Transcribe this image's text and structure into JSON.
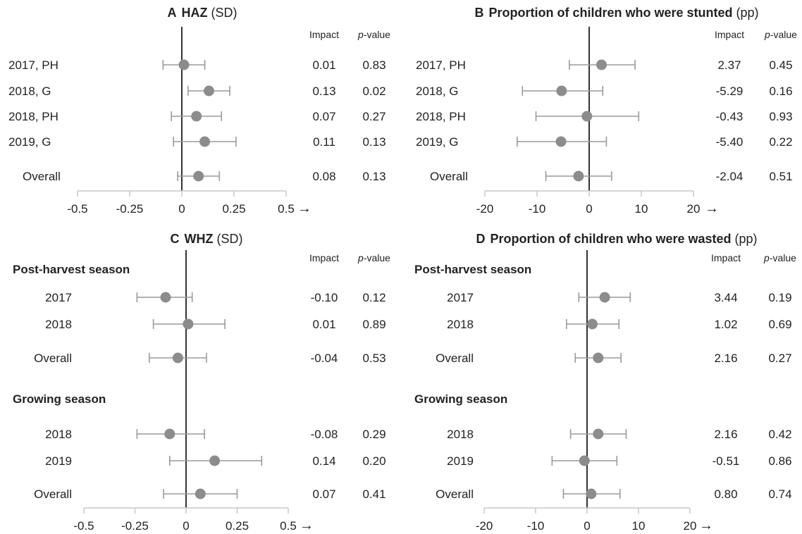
{
  "colors": {
    "point": "#8c8c8c",
    "ci_line": "#9a9a9a",
    "zero_line": "#000000",
    "axis": "#c8c8c8",
    "text": "#222222"
  },
  "chart_data": [
    {
      "type": "forest",
      "panel_letter": "A",
      "title_bold": "HAZ",
      "title_unit": "(SD)",
      "col_impact": "Impact",
      "col_p_prefix": "p",
      "col_p_suffix": "-value",
      "xlim": [
        -0.5,
        0.5
      ],
      "xticks": [
        -0.5,
        -0.25,
        0,
        0.25,
        0.5
      ],
      "xtick_labels": [
        "-0.5",
        "-0.25",
        "0",
        "0.25",
        "0.5"
      ],
      "arrow": "→",
      "rows": [
        {
          "label": "2017, PH",
          "est": 0.01,
          "lo": -0.09,
          "hi": 0.11,
          "impact": "0.01",
          "p": "0.83"
        },
        {
          "label": "2018, G",
          "est": 0.13,
          "lo": 0.03,
          "hi": 0.23,
          "impact": "0.13",
          "p": "0.02"
        },
        {
          "label": "2018, PH",
          "est": 0.07,
          "lo": -0.05,
          "hi": 0.19,
          "impact": "0.07",
          "p": "0.27"
        },
        {
          "label": "2019, G",
          "est": 0.11,
          "lo": -0.04,
          "hi": 0.26,
          "impact": "0.11",
          "p": "0.13"
        },
        {
          "label": "Overall",
          "est": 0.08,
          "lo": -0.02,
          "hi": 0.18,
          "impact": "0.08",
          "p": "0.13"
        }
      ]
    },
    {
      "type": "forest",
      "panel_letter": "B",
      "title_bold": "Proportion of children who were stunted",
      "title_unit": "(pp)",
      "col_impact": "Impact",
      "col_p_prefix": "p",
      "col_p_suffix": "-value",
      "xlim": [
        -20,
        20
      ],
      "xticks": [
        -20,
        -10,
        0,
        10,
        20
      ],
      "xtick_labels": [
        "-20",
        "-10",
        "0",
        "10",
        "20"
      ],
      "arrow": "→",
      "rows": [
        {
          "label": "2017, PH",
          "est": 2.37,
          "lo": -3.8,
          "hi": 8.8,
          "impact": "2.37",
          "p": "0.45"
        },
        {
          "label": "2018, G",
          "est": -5.29,
          "lo": -12.8,
          "hi": 2.6,
          "impact": "-5.29",
          "p": "0.16"
        },
        {
          "label": "2018, PH",
          "est": -0.43,
          "lo": -10.2,
          "hi": 9.5,
          "impact": "-0.43",
          "p": "0.93"
        },
        {
          "label": "2019, G",
          "est": -5.4,
          "lo": -13.8,
          "hi": 3.3,
          "impact": "-5.40",
          "p": "0.22"
        },
        {
          "label": "Overall",
          "est": -2.04,
          "lo": -8.3,
          "hi": 4.3,
          "impact": "-2.04",
          "p": "0.51"
        }
      ]
    },
    {
      "type": "forest",
      "panel_letter": "C",
      "title_bold": "WHZ",
      "title_unit": "(SD)",
      "col_impact": "Impact",
      "col_p_prefix": "p",
      "col_p_suffix": "-value",
      "xlim": [
        -0.5,
        0.5
      ],
      "xticks": [
        -0.5,
        -0.25,
        0,
        0.25,
        0.5
      ],
      "xtick_labels": [
        "-0.5",
        "-0.25",
        "0",
        "0.25",
        "0.5"
      ],
      "arrow": "→",
      "groups": [
        {
          "heading": "Post-harvest season",
          "rows": [
            {
              "label": "2017",
              "est": -0.1,
              "lo": -0.24,
              "hi": 0.03,
              "impact": "-0.10",
              "p": "0.12"
            },
            {
              "label": "2018",
              "est": 0.01,
              "lo": -0.16,
              "hi": 0.19,
              "impact": "0.01",
              "p": "0.89"
            },
            {
              "label": "Overall",
              "est": -0.04,
              "lo": -0.18,
              "hi": 0.1,
              "impact": "-0.04",
              "p": "0.53"
            }
          ]
        },
        {
          "heading": "Growing season",
          "rows": [
            {
              "label": "2018",
              "est": -0.08,
              "lo": -0.24,
              "hi": 0.09,
              "impact": "-0.08",
              "p": "0.29"
            },
            {
              "label": "2019",
              "est": 0.14,
              "lo": -0.08,
              "hi": 0.37,
              "impact": "0.14",
              "p": "0.20"
            },
            {
              "label": "Overall",
              "est": 0.07,
              "lo": -0.11,
              "hi": 0.25,
              "impact": "0.07",
              "p": "0.41"
            }
          ]
        }
      ]
    },
    {
      "type": "forest",
      "panel_letter": "D",
      "title_bold": "Proportion of children who were wasted",
      "title_unit": "(pp)",
      "col_impact": "Impact",
      "col_p_prefix": "p",
      "col_p_suffix": "-value",
      "xlim": [
        -20,
        20
      ],
      "xticks": [
        -20,
        -10,
        0,
        10,
        20
      ],
      "xtick_labels": [
        "-20",
        "-10",
        "0",
        "10",
        "20"
      ],
      "arrow": "→",
      "groups": [
        {
          "heading": "Post-harvest season",
          "rows": [
            {
              "label": "2017",
              "est": 3.44,
              "lo": -1.6,
              "hi": 8.4,
              "impact": "3.44",
              "p": "0.19"
            },
            {
              "label": "2018",
              "est": 1.02,
              "lo": -4.0,
              "hi": 6.2,
              "impact": "1.02",
              "p": "0.69"
            },
            {
              "label": "Overall",
              "est": 2.16,
              "lo": -2.3,
              "hi": 6.6,
              "impact": "2.16",
              "p": "0.27"
            }
          ]
        },
        {
          "heading": "Growing season",
          "rows": [
            {
              "label": "2018",
              "est": 2.16,
              "lo": -3.2,
              "hi": 7.6,
              "impact": "2.16",
              "p": "0.42"
            },
            {
              "label": "2019",
              "est": -0.51,
              "lo": -6.8,
              "hi": 5.8,
              "impact": "-0.51",
              "p": "0.86"
            },
            {
              "label": "Overall",
              "est": 0.8,
              "lo": -4.6,
              "hi": 6.4,
              "impact": "0.80",
              "p": "0.74"
            }
          ]
        }
      ]
    }
  ]
}
